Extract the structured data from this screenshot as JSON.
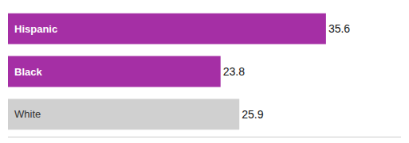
{
  "chart_data": {
    "type": "bar",
    "orientation": "horizontal",
    "categories": [
      "White",
      "Black",
      "Hispanic"
    ],
    "values": [
      25.9,
      23.8,
      35.6
    ],
    "colors": [
      "#d0d0d0",
      "#a52fa5",
      "#a52fa5"
    ],
    "data_labels": true,
    "xlim": [
      0,
      44
    ],
    "grid": false,
    "tick_labels": false
  }
}
